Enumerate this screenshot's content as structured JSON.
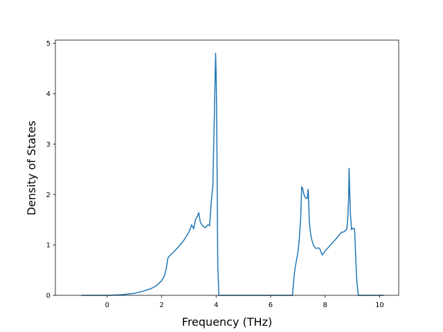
{
  "chart_data": {
    "type": "line",
    "title": "",
    "xlabel": "Frequency (THz)",
    "ylabel": "Density of States",
    "xlim": [
      -1.9,
      10.7
    ],
    "ylim": [
      0,
      5.06
    ],
    "xticks": [
      0,
      2,
      4,
      6,
      8,
      10
    ],
    "yticks": [
      0,
      1,
      2,
      3,
      4,
      5
    ],
    "grid": false,
    "legend": "none",
    "series": [
      {
        "name": "",
        "color": "#1f77b4",
        "x": [
          -0.95,
          -0.2,
          0.0,
          0.5,
          1.0,
          1.3,
          1.6,
          1.8,
          2.0,
          2.1,
          2.17,
          2.22,
          2.25,
          2.4,
          2.6,
          2.8,
          3.0,
          3.1,
          3.18,
          3.24,
          3.3,
          3.36,
          3.42,
          3.5,
          3.6,
          3.7,
          3.76,
          3.82,
          3.88,
          3.94,
          3.98,
          4.0,
          4.02,
          4.06,
          4.1,
          4.14,
          4.2,
          5.0,
          6.0,
          6.8,
          6.85,
          6.9,
          7.0,
          7.05,
          7.1,
          7.14,
          7.17,
          7.22,
          7.28,
          7.34,
          7.38,
          7.42,
          7.46,
          7.5,
          7.58,
          7.66,
          7.74,
          7.8,
          7.86,
          7.9,
          7.95,
          8.0,
          8.2,
          8.4,
          8.6,
          8.7,
          8.8,
          8.84,
          8.86,
          8.88,
          8.9,
          8.93,
          8.97,
          9.0,
          9.04,
          9.08,
          9.12,
          9.16,
          9.22,
          9.4,
          9.8,
          10.15
        ],
        "y": [
          0,
          0,
          0,
          0.01,
          0.04,
          0.08,
          0.13,
          0.19,
          0.29,
          0.38,
          0.53,
          0.72,
          0.76,
          0.84,
          0.95,
          1.08,
          1.25,
          1.4,
          1.32,
          1.5,
          1.55,
          1.64,
          1.45,
          1.38,
          1.34,
          1.4,
          1.38,
          1.85,
          2.18,
          3.7,
          4.8,
          4.4,
          3.6,
          0.6,
          0.0,
          0.0,
          0.0,
          0.0,
          0.0,
          0.0,
          0.32,
          0.55,
          0.85,
          1.1,
          1.5,
          2.15,
          2.13,
          2.0,
          1.93,
          1.92,
          2.1,
          1.45,
          1.25,
          1.12,
          0.98,
          0.93,
          0.94,
          0.93,
          0.84,
          0.8,
          0.84,
          0.88,
          1.0,
          1.12,
          1.25,
          1.26,
          1.32,
          1.6,
          1.9,
          2.52,
          2.1,
          1.6,
          1.3,
          1.33,
          1.32,
          1.32,
          0.8,
          0.3,
          0.0,
          0.0,
          0.0,
          0.0
        ]
      }
    ]
  }
}
